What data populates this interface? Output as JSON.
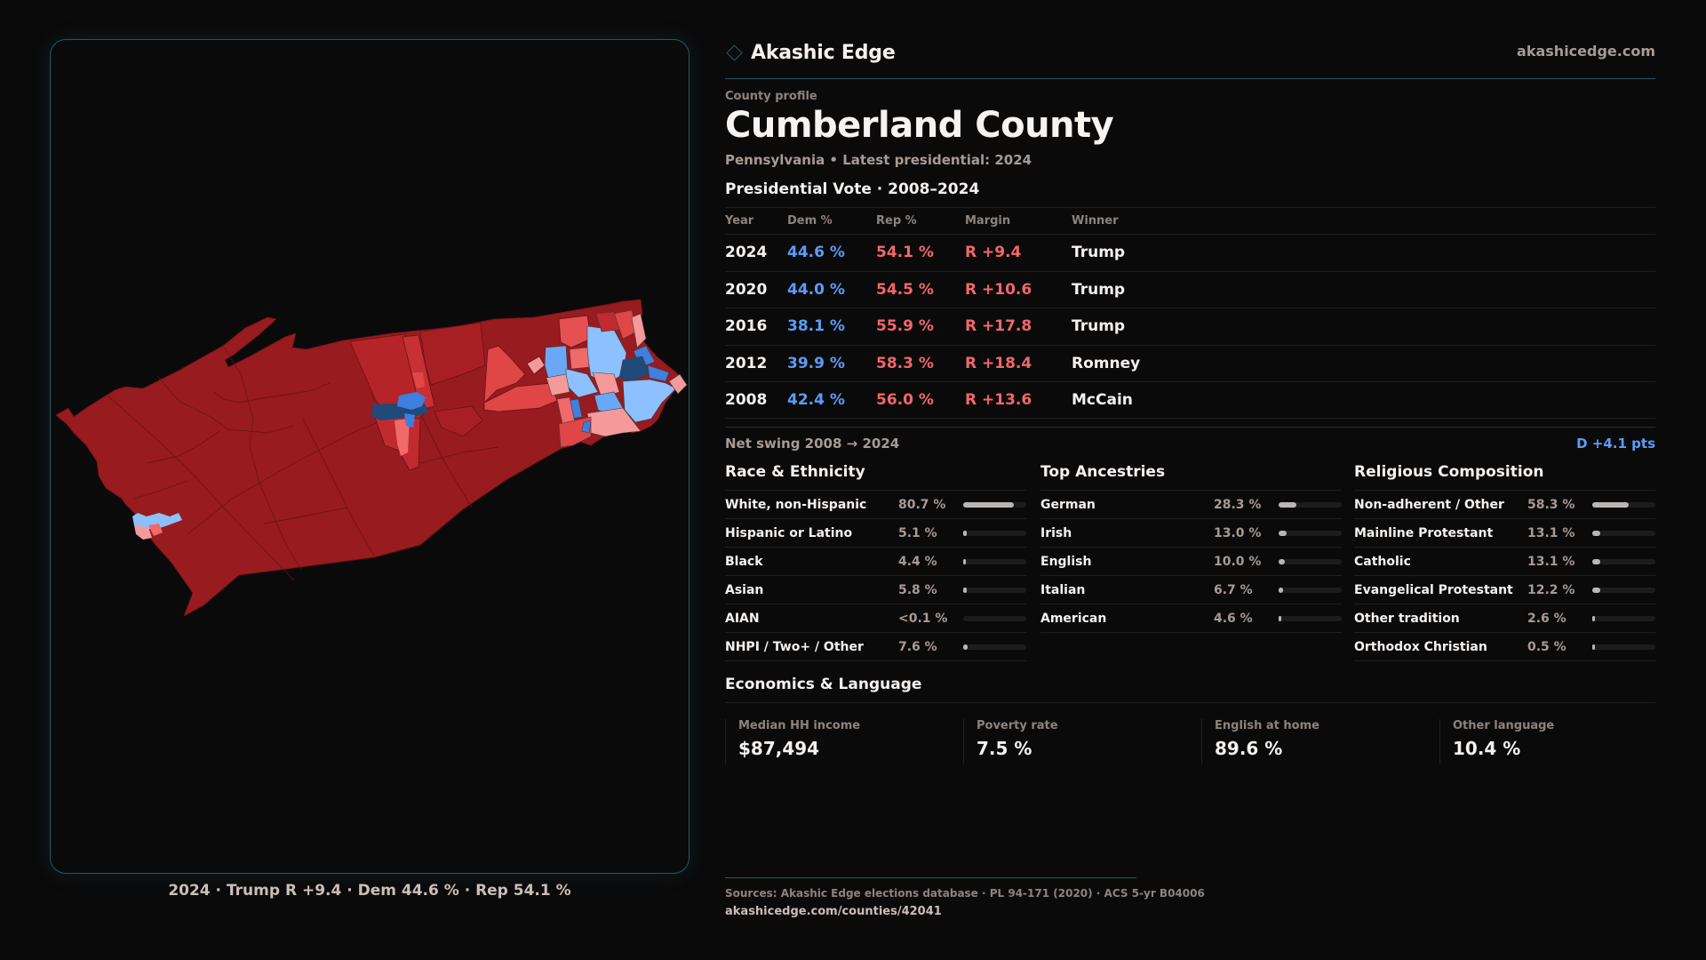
{
  "brand": {
    "name": "Akashic Edge",
    "site": "akashicedge.com",
    "logo_icon": "diamond-outline-icon",
    "accent": "#1d5a66"
  },
  "profile": {
    "kicker": "County profile",
    "title": "Cumberland County",
    "subtitle": "Pennsylvania • Latest presidential: 2024"
  },
  "colors": {
    "dem": "#5c9cf5",
    "rep": "#f0686a",
    "bar_fill": "#b9b6b5",
    "bar_track": "#1d1b1c"
  },
  "map": {
    "caption": "2024 · Trump R +9.4 · Dem 44.6 % · Rep 54.1 %",
    "legend_scale": [
      "#1f4a7a",
      "#3f7fe0",
      "#8cc0ff",
      "#f49a9a",
      "#f06a6a",
      "#e04646",
      "#c12a2e",
      "#971b1f"
    ]
  },
  "vote": {
    "title": "Presidential Vote · 2008–2024",
    "headers": {
      "year": "Year",
      "dem": "Dem %",
      "rep": "Rep %",
      "margin": "Margin",
      "winner": "Winner"
    },
    "rows": [
      {
        "year": "2024",
        "dem": "44.6 %",
        "rep": "54.1 %",
        "margin": "R +9.4",
        "winner": "Trump"
      },
      {
        "year": "2020",
        "dem": "44.0 %",
        "rep": "54.5 %",
        "margin": "R +10.6",
        "winner": "Trump"
      },
      {
        "year": "2016",
        "dem": "38.1 %",
        "rep": "55.9 %",
        "margin": "R +17.8",
        "winner": "Trump"
      },
      {
        "year": "2012",
        "dem": "39.9 %",
        "rep": "58.3 %",
        "margin": "R +18.4",
        "winner": "Romney"
      },
      {
        "year": "2008",
        "dem": "42.4 %",
        "rep": "56.0 %",
        "margin": "R +13.6",
        "winner": "McCain"
      }
    ],
    "swing_label": "Net swing 2008 → 2024",
    "swing_value": "D +4.1 pts"
  },
  "demographics": {
    "race": {
      "title": "Race & Ethnicity",
      "items": [
        {
          "label": "White, non-Hispanic",
          "value": "80.7 %",
          "pct": 80.7
        },
        {
          "label": "Hispanic or Latino",
          "value": "5.1 %",
          "pct": 5.1
        },
        {
          "label": "Black",
          "value": "4.4 %",
          "pct": 4.4
        },
        {
          "label": "Asian",
          "value": "5.8 %",
          "pct": 5.8
        },
        {
          "label": "AIAN",
          "value": "<0.1 %",
          "pct": 0.05
        },
        {
          "label": "NHPI / Two+ / Other",
          "value": "7.6 %",
          "pct": 7.6
        }
      ]
    },
    "ancestry": {
      "title": "Top Ancestries",
      "items": [
        {
          "label": "German",
          "value": "28.3 %",
          "pct": 28.3
        },
        {
          "label": "Irish",
          "value": "13.0 %",
          "pct": 13.0
        },
        {
          "label": "English",
          "value": "10.0 %",
          "pct": 10.0
        },
        {
          "label": "Italian",
          "value": "6.7 %",
          "pct": 6.7
        },
        {
          "label": "American",
          "value": "4.6 %",
          "pct": 4.6
        }
      ]
    },
    "religion": {
      "title": "Religious Composition",
      "items": [
        {
          "label": "Non-adherent / Other",
          "value": "58.3 %",
          "pct": 58.3
        },
        {
          "label": "Mainline Protestant",
          "value": "13.1 %",
          "pct": 13.1
        },
        {
          "label": "Catholic",
          "value": "13.1 %",
          "pct": 13.1
        },
        {
          "label": "Evangelical Protestant",
          "value": "12.2 %",
          "pct": 12.2
        },
        {
          "label": "Other tradition",
          "value": "2.6 %",
          "pct": 2.6
        },
        {
          "label": "Orthodox Christian",
          "value": "0.5 %",
          "pct": 0.5
        }
      ]
    }
  },
  "economics": {
    "title": "Economics & Language",
    "stats": [
      {
        "label": "Median HH income",
        "value": "$87,494"
      },
      {
        "label": "Poverty rate",
        "value": "7.5 %"
      },
      {
        "label": "English at home",
        "value": "89.6 %"
      },
      {
        "label": "Other language",
        "value": "10.4 %"
      }
    ]
  },
  "footer": {
    "sources": "Sources: Akashic Edge elections database · PL 94-171 (2020) · ACS 5-yr B04006",
    "permalink": "akashicedge.com/counties/42041"
  }
}
